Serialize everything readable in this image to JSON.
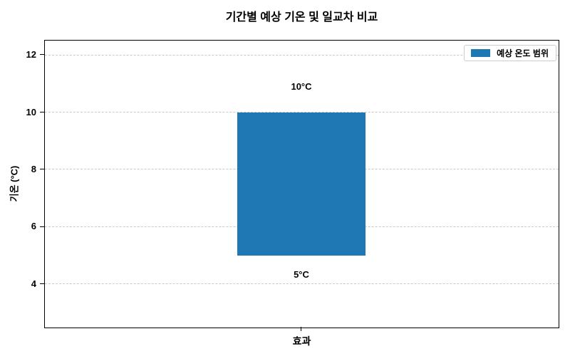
{
  "chart_data": {
    "type": "bar",
    "title": "기간별 예상 기온 및 일교차 비교",
    "ylabel": "기온 (°C)",
    "xlabel": "",
    "categories": [
      "효과"
    ],
    "series": [
      {
        "name": "예상 온도 범위",
        "low": 5,
        "high": 10,
        "color": "#1f77b4"
      }
    ],
    "annotations": [
      {
        "text": "10°C",
        "target": "bar-top"
      },
      {
        "text": "5°C",
        "target": "bar-bottom"
      }
    ],
    "ylim": [
      2.5,
      12.5
    ],
    "yticks": [
      4,
      6,
      8,
      10,
      12
    ],
    "grid": "horizontal-dashed",
    "grid_color": "#c9c9c9",
    "bar_width_fraction": 0.25,
    "legend": {
      "position": "upper right",
      "entries": [
        "예상 온도 범위"
      ]
    }
  }
}
